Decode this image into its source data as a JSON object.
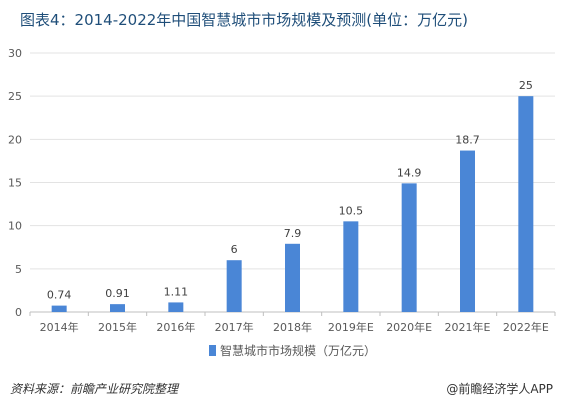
{
  "title": "图表4：2014-2022年中国智慧城市市场规模及预测(单位：万亿元)",
  "source": "资料来源：前瞻产业研究院整理",
  "brand": "@前瞻经济学人APP",
  "colors": {
    "bar": "#4a86d6",
    "grid": "#e3e3e3",
    "axis": "#bfbfbf",
    "text": "#595959"
  },
  "chart_data": {
    "type": "bar",
    "categories": [
      "2014年",
      "2015年",
      "2016年",
      "2017年",
      "2018年",
      "2019年E",
      "2020年E",
      "2021年E",
      "2022年E"
    ],
    "series": [
      {
        "name": "智慧城市市场规模（万亿元）",
        "values": [
          0.74,
          0.91,
          1.11,
          6,
          7.9,
          10.5,
          14.9,
          18.7,
          25
        ]
      }
    ],
    "data_labels": [
      "0.74",
      "0.91",
      "1.11",
      "6",
      "7.9",
      "10.5",
      "14.9",
      "18.7",
      "25"
    ],
    "ylim": [
      0,
      30
    ],
    "yticks": [
      0,
      5,
      10,
      15,
      20,
      25,
      30
    ],
    "grid": true,
    "legend_position": "bottom"
  }
}
